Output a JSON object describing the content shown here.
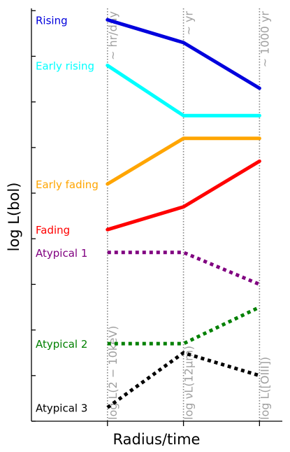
{
  "chart_data": {
    "type": "line",
    "xlabel": "Radius/time",
    "ylabel": "log L(bol)",
    "x": [
      0,
      1,
      2
    ],
    "xlim": [
      -1,
      2.3
    ],
    "ylim": [
      0,
      9.05
    ],
    "x_tick_count": 3,
    "y_tick_count": 10,
    "grid": false,
    "legend": "none",
    "vertical_markers": [
      {
        "x": 0,
        "bottom_label": "log L(2 − 10keV)",
        "top_label": "~ hr/day"
      },
      {
        "x": 1,
        "bottom_label": "log νL(12μm)",
        "top_label": "~ yr"
      },
      {
        "x": 2,
        "bottom_label": "log L([OIII])",
        "top_label": "~ 1000 yr"
      }
    ],
    "series": [
      {
        "name": "Rising",
        "values": [
          8.8,
          8.3,
          7.3
        ],
        "color": "#0000dd",
        "style": "solid"
      },
      {
        "name": "Early rising",
        "values": [
          7.8,
          6.7,
          6.7
        ],
        "color": "#00ffff",
        "style": "solid"
      },
      {
        "name": "Early fading",
        "values": [
          5.2,
          6.2,
          6.2
        ],
        "color": "#ffa500",
        "style": "solid"
      },
      {
        "name": "Fading",
        "values": [
          4.2,
          4.7,
          5.7
        ],
        "color": "#ff0000",
        "style": "solid"
      },
      {
        "name": "Atypical 1",
        "values": [
          3.7,
          3.7,
          3.0
        ],
        "color": "#800080",
        "style": "dotted"
      },
      {
        "name": "Atypical 2",
        "values": [
          1.7,
          1.7,
          2.5
        ],
        "color": "#008000",
        "style": "dotted"
      },
      {
        "name": "Atypical 3",
        "values": [
          0.3,
          1.5,
          1.0
        ],
        "color": "#000000",
        "style": "dotted"
      }
    ]
  }
}
